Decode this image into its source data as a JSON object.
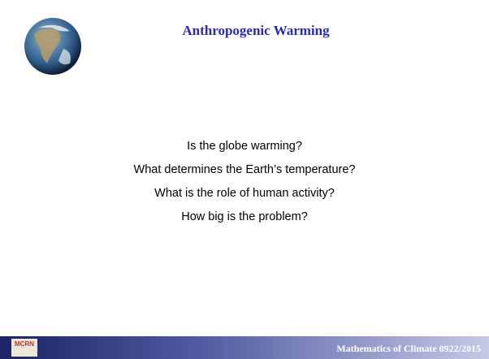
{
  "header": {
    "title": "Anthropogenic Warming"
  },
  "body": {
    "lines": [
      "Is the globe warming?",
      "What determines the Earth’s temperature?",
      "What is the role of human activity?",
      "How big is the problem?"
    ]
  },
  "footer": {
    "logo": "MCRN",
    "text": "Mathematics of Climate  0922/2015"
  }
}
